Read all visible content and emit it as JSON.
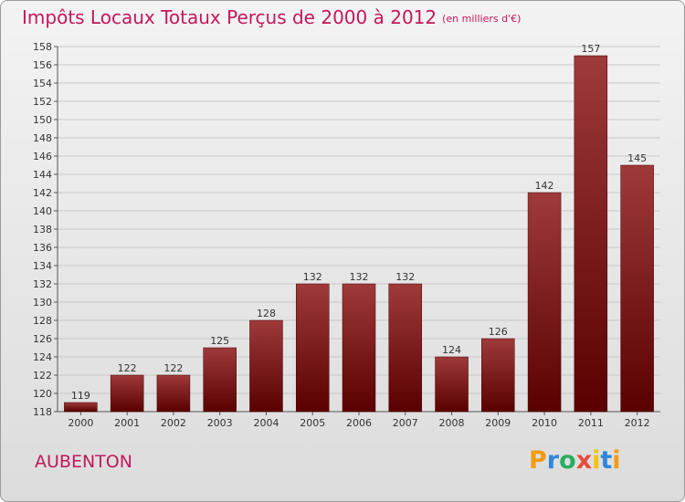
{
  "title": "Impôts Locaux Totaux Perçus de 2000 à 2012",
  "subtitle": "(en milliers d'€)",
  "city": "AUBENTON",
  "logo": {
    "letters": [
      "P",
      "r",
      "o",
      "x",
      "i",
      "t",
      "i"
    ],
    "colors": [
      "#f39c12",
      "#2e86de",
      "#27ae60",
      "#e74c3c",
      "#f1c40f",
      "#2e86de",
      "#f39c12"
    ]
  },
  "colors": {
    "bar_dark": "#5a0000",
    "bar_light": "#9e3a3a",
    "title": "#c2185b"
  },
  "chart_data": {
    "type": "bar",
    "categories": [
      "2000",
      "2001",
      "2002",
      "2003",
      "2004",
      "2005",
      "2006",
      "2007",
      "2008",
      "2009",
      "2010",
      "2011",
      "2012"
    ],
    "values": [
      119,
      122,
      122,
      125,
      128,
      132,
      132,
      132,
      124,
      126,
      142,
      157,
      145
    ],
    "ylim": [
      118,
      158
    ],
    "yticks": [
      118,
      120,
      122,
      124,
      126,
      128,
      130,
      132,
      134,
      136,
      138,
      140,
      142,
      144,
      146,
      148,
      150,
      152,
      154,
      156,
      158
    ],
    "grid": true,
    "data_labels": true
  }
}
